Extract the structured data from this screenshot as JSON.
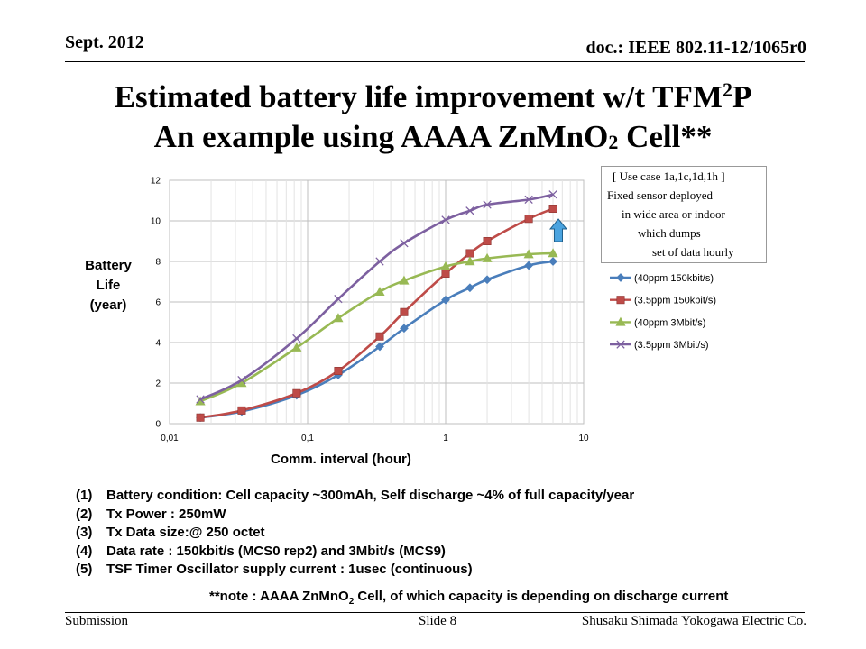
{
  "header": {
    "date": "Sept. 2012",
    "doc": "doc.: IEEE 802.11-12/1065r0"
  },
  "title": {
    "line1_a": "Estimated battery life improvement w/t TFM",
    "line1_sup": "2",
    "line1_b": "P",
    "line2_a": "An example using AAAA ZnMnO",
    "line2_sub": "2",
    "line2_b": " Cell**"
  },
  "usecase": [
    "[ Use case 1a,1c,1d,1h ]",
    "Fixed sensor deployed",
    "in wide area or indoor",
    "which dumps",
    "set of data hourly"
  ],
  "chart_data": {
    "type": "line",
    "xscale": "log",
    "xlabel": "Comm. interval (hour)",
    "ylabel_lines": [
      "Battery",
      "Life",
      "(year)"
    ],
    "xlim": [
      0.01,
      10
    ],
    "ylim": [
      0,
      12
    ],
    "xticks": [
      0.01,
      0.1,
      1,
      10
    ],
    "xtick_labels": [
      "0,01",
      "0,1",
      "1",
      "10"
    ],
    "yticks": [
      0,
      2,
      4,
      6,
      8,
      10,
      12
    ],
    "ytick_labels": [
      "0",
      "2",
      "4",
      "6",
      "8",
      "10",
      "12"
    ],
    "grid": true,
    "legend_position": "right",
    "series": [
      {
        "name": "(40ppm 150kbit/s)",
        "color": "#4a7ebb",
        "marker": "diamond",
        "x": [
          0.0167,
          0.0333,
          0.0833,
          0.1667,
          0.3333,
          0.5,
          1,
          1.5,
          2,
          4,
          6
        ],
        "y": [
          0.3,
          0.6,
          1.4,
          2.4,
          3.8,
          4.7,
          6.1,
          6.7,
          7.1,
          7.8,
          8.0
        ]
      },
      {
        "name": "(3.5ppm 150kbit/s)",
        "color": "#be4b48",
        "marker": "square",
        "x": [
          0.0167,
          0.0333,
          0.0833,
          0.1667,
          0.3333,
          0.5,
          1,
          1.5,
          2,
          4,
          6
        ],
        "y": [
          0.3,
          0.65,
          1.5,
          2.6,
          4.3,
          5.5,
          7.4,
          8.4,
          9.0,
          10.1,
          10.6
        ]
      },
      {
        "name": "(40ppm 3Mbit/s)",
        "color": "#98b954",
        "marker": "triangle",
        "x": [
          0.0167,
          0.0333,
          0.0833,
          0.1667,
          0.3333,
          0.5,
          1,
          1.5,
          2,
          4,
          6
        ],
        "y": [
          1.1,
          2.0,
          3.75,
          5.2,
          6.5,
          7.05,
          7.75,
          8.0,
          8.15,
          8.35,
          8.4
        ]
      },
      {
        "name": "(3.5ppm 3Mbit/s)",
        "color": "#7d60a0",
        "marker": "x",
        "x": [
          0.0167,
          0.0333,
          0.0833,
          0.1667,
          0.3333,
          0.5,
          1,
          1.5,
          2,
          4,
          6
        ],
        "y": [
          1.2,
          2.15,
          4.2,
          6.15,
          8.0,
          8.9,
          10.05,
          10.5,
          10.8,
          11.05,
          11.3
        ]
      }
    ]
  },
  "notes": [
    {
      "num": "(1)",
      "text": "Battery condition:  Cell capacity ~300mAh,  Self discharge ~4% of full capacity/year"
    },
    {
      "num": "(2)",
      "text": "Tx Power : 250mW"
    },
    {
      "num": "(3)",
      "text": "Tx Data size:@  250 octet"
    },
    {
      "num": "(4)",
      "text": "Data rate : 150kbit/s (MCS0 rep2) and 3Mbit/s (MCS9)"
    },
    {
      "num": "(5)",
      "text": "TSF Timer Oscillator supply current : 1usec (continuous)"
    }
  ],
  "footnote": {
    "a": "**note : AAAA ZnMnO",
    "sub": "2",
    "b": " Cell, of which capacity is depending on discharge current"
  },
  "footer": {
    "left": "Submission",
    "mid": "Slide 8",
    "right": "Shusaku Shimada Yokogawa Electric Co."
  },
  "colors": {
    "arrow": "#4aa3df"
  }
}
